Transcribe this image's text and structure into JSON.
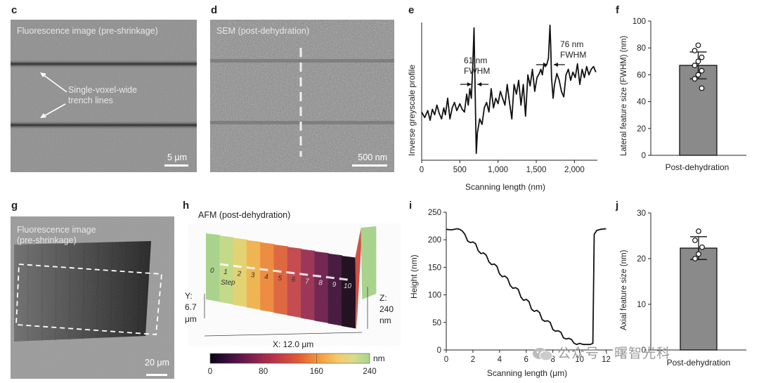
{
  "panels": {
    "c": {
      "letter": "c",
      "title": "Fluorescence image (pre-shrinkage)",
      "annotation": [
        "Single-voxel-wide",
        "trench lines"
      ],
      "scale": "5 μm"
    },
    "d": {
      "letter": "d",
      "title": "SEM (post-dehydration)",
      "scale": "500 nm"
    },
    "e": {
      "letter": "e",
      "fwhm_left": [
        "61 nm",
        "FWHM"
      ],
      "fwhm_right": [
        "76 nm",
        "FWHM"
      ]
    },
    "f": {
      "letter": "f"
    },
    "g": {
      "letter": "g",
      "title": [
        "Fluorescence image",
        "(pre-shrinkage)"
      ],
      "scale": "20 μm"
    },
    "h": {
      "letter": "h",
      "title": "AFM (post-dehydration)",
      "steps": [
        "0",
        "1",
        "2",
        "3",
        "4",
        "5",
        "6",
        "7",
        "8",
        "9",
        "10"
      ],
      "step_label": "Step",
      "y_dim": [
        "Y:",
        "6.7",
        "μm"
      ],
      "z_dim": [
        "Z:",
        "240",
        "nm"
      ],
      "x_dim": "X: 12.0 μm",
      "colorbar_unit": "nm",
      "colorbar_ticks": [
        "0",
        "80",
        "160",
        "240"
      ],
      "colorbar_colors": [
        "#0b0414",
        "#3b0f3f",
        "#7a1d4d",
        "#b8334a",
        "#e05a35",
        "#f39a3b",
        "#f6c96a",
        "#d6dc8e",
        "#a8d58a"
      ]
    },
    "i": {
      "letter": "i"
    },
    "j": {
      "letter": "j"
    }
  },
  "watermark": "公众号 · 曙智光科",
  "chart_data": [
    {
      "id": "e",
      "type": "line",
      "xlabel": "Scanning length (nm)",
      "ylabel": "Inverse greyscale profile",
      "xlim": [
        0,
        2300
      ],
      "xticks": [
        0,
        500,
        1000,
        1500,
        2000
      ],
      "xtick_labels": [
        "0",
        "500",
        "1,000",
        "1,500",
        "2,000"
      ],
      "ylim": [
        0,
        1
      ],
      "yticks_shown": false,
      "x": [
        0,
        40,
        80,
        110,
        140,
        170,
        200,
        230,
        260,
        290,
        310,
        340,
        370,
        400,
        430,
        460,
        500,
        530,
        560,
        590,
        610,
        630,
        650,
        670,
        685,
        700,
        715,
        730,
        760,
        790,
        820,
        850,
        880,
        910,
        940,
        970,
        1000,
        1030,
        1060,
        1090,
        1120,
        1150,
        1180,
        1210,
        1240,
        1270,
        1300,
        1330,
        1360,
        1390,
        1420,
        1450,
        1480,
        1510,
        1540,
        1560,
        1580,
        1600,
        1620,
        1640,
        1660,
        1680,
        1690,
        1700,
        1720,
        1740,
        1770,
        1800,
        1830,
        1860,
        1890,
        1920,
        1950,
        1980,
        2010,
        2040,
        2070,
        2100,
        2130,
        2160,
        2190,
        2220,
        2250,
        2280
      ],
      "y": [
        0.35,
        0.31,
        0.36,
        0.29,
        0.37,
        0.33,
        0.4,
        0.34,
        0.3,
        0.38,
        0.33,
        0.45,
        0.3,
        0.38,
        0.42,
        0.36,
        0.41,
        0.37,
        0.35,
        0.48,
        0.4,
        0.52,
        0.45,
        0.7,
        0.96,
        0.5,
        0.05,
        0.2,
        0.3,
        0.26,
        0.38,
        0.42,
        0.35,
        0.52,
        0.38,
        0.45,
        0.41,
        0.5,
        0.45,
        0.4,
        0.55,
        0.42,
        0.3,
        0.55,
        0.48,
        0.58,
        0.4,
        0.55,
        0.32,
        0.62,
        0.54,
        0.66,
        0.5,
        0.6,
        0.63,
        0.66,
        0.62,
        0.7,
        0.68,
        0.7,
        0.74,
        0.98,
        0.82,
        0.6,
        0.45,
        0.55,
        0.63,
        0.58,
        0.5,
        0.46,
        0.62,
        0.66,
        0.58,
        0.64,
        0.6,
        0.7,
        0.55,
        0.66,
        0.6,
        0.68,
        0.62,
        0.66,
        0.68,
        0.64
      ],
      "annotations": [
        "61 nm FWHM",
        "76 nm FWHM"
      ]
    },
    {
      "id": "f",
      "type": "bar",
      "categories": [
        "Post-dehydration"
      ],
      "values": [
        67
      ],
      "error": 10,
      "points": [
        82,
        78,
        73,
        70,
        67,
        63,
        60,
        57,
        50
      ],
      "ylabel": "Lateral feature size (FWHM) (nm)",
      "ylim": [
        0,
        100
      ],
      "yticks": [
        0,
        20,
        40,
        60,
        80,
        100
      ]
    },
    {
      "id": "i",
      "type": "line",
      "xlabel": "Scanning length (μm)",
      "ylabel": "Height (nm)",
      "xlim": [
        0,
        12.5
      ],
      "xticks": [
        0,
        2,
        4,
        6,
        8,
        10,
        12
      ],
      "ylim": [
        0,
        250
      ],
      "yticks": [
        0,
        50,
        100,
        150,
        200,
        250
      ],
      "x": [
        0,
        0.4,
        0.8,
        1.0,
        1.2,
        1.4,
        1.6,
        1.8,
        2.0,
        2.2,
        2.4,
        2.6,
        2.8,
        3.0,
        3.2,
        3.4,
        3.6,
        3.8,
        4.0,
        4.2,
        4.4,
        4.6,
        4.8,
        5.0,
        5.2,
        5.4,
        5.6,
        5.8,
        6.0,
        6.2,
        6.4,
        6.6,
        6.8,
        7.0,
        7.2,
        7.4,
        7.6,
        7.8,
        8.0,
        8.2,
        8.4,
        8.6,
        8.8,
        9.0,
        9.2,
        9.4,
        9.6,
        9.8,
        10.0,
        10.3,
        10.6,
        10.8,
        11.0,
        11.1,
        11.3,
        11.6,
        12.0
      ],
      "y": [
        219,
        218,
        220,
        219,
        216,
        210,
        198,
        195,
        196,
        193,
        180,
        175,
        176,
        172,
        160,
        155,
        156,
        152,
        138,
        133,
        134,
        130,
        117,
        112,
        113,
        110,
        96,
        90,
        92,
        88,
        74,
        70,
        72,
        68,
        55,
        52,
        53,
        50,
        37,
        34,
        35,
        32,
        22,
        20,
        21,
        19,
        12,
        10,
        12,
        10,
        10,
        10,
        12,
        210,
        217,
        219,
        220
      ]
    },
    {
      "id": "j",
      "type": "bar",
      "categories": [
        "Post-dehydration"
      ],
      "values": [
        22.3
      ],
      "error": 2.5,
      "points": [
        26,
        24,
        22.5,
        21,
        20
      ],
      "ylabel": "Axial feature size (nm)",
      "ylim": [
        0,
        30
      ],
      "yticks": [
        0,
        10,
        20,
        30
      ]
    }
  ]
}
